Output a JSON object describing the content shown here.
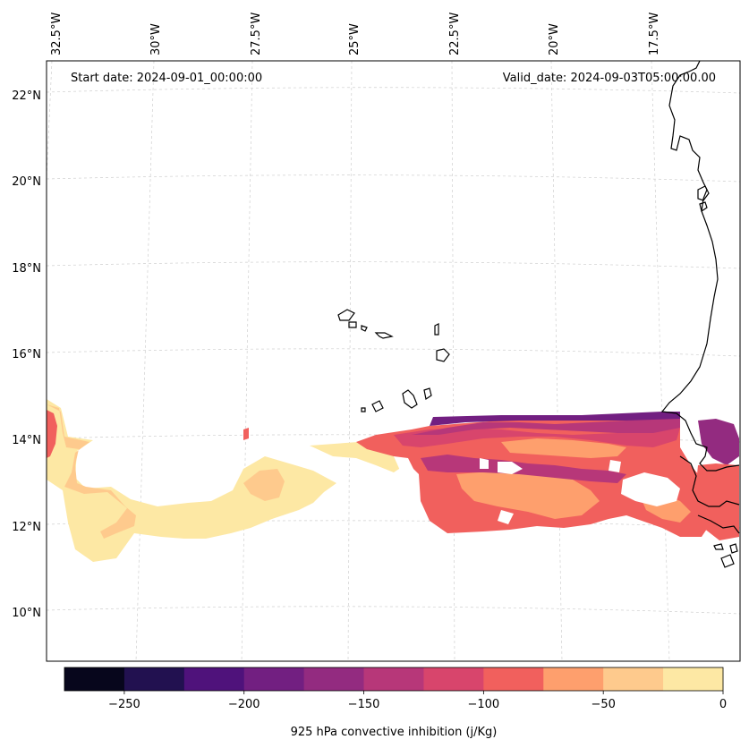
{
  "start_date": "Start date: 2024-09-01_00:00:00",
  "valid_date": "Valid_date: 2024-09-03T05:00:00.00",
  "lon_labels": [
    "32.5°W",
    "30°W",
    "27.5°W",
    "25°W",
    "22.5°W",
    "20°W",
    "17.5°W"
  ],
  "lat_labels": [
    "22°N",
    "20°N",
    "18°N",
    "16°N",
    "14°N",
    "12°N",
    "10°N"
  ],
  "colorbar": {
    "label": "925 hPa convective inhibition (j/Kg)",
    "min": -275,
    "max": 0,
    "levels": [
      -275,
      -250,
      -225,
      -200,
      -175,
      -150,
      -125,
      -100,
      -75,
      -50,
      -25,
      0
    ],
    "colors": [
      "#07061c",
      "#221150",
      "#4f127b",
      "#721f81",
      "#932b80",
      "#b73779",
      "#d8456c",
      "#f1605d",
      "#fe9f6d",
      "#feca8d",
      "#fde8a4"
    ],
    "tick_values": [
      -250,
      -200,
      -150,
      -100,
      -50,
      0
    ],
    "tick_labels": [
      "−250",
      "−200",
      "−150",
      "−100",
      "−50",
      "0"
    ]
  }
}
